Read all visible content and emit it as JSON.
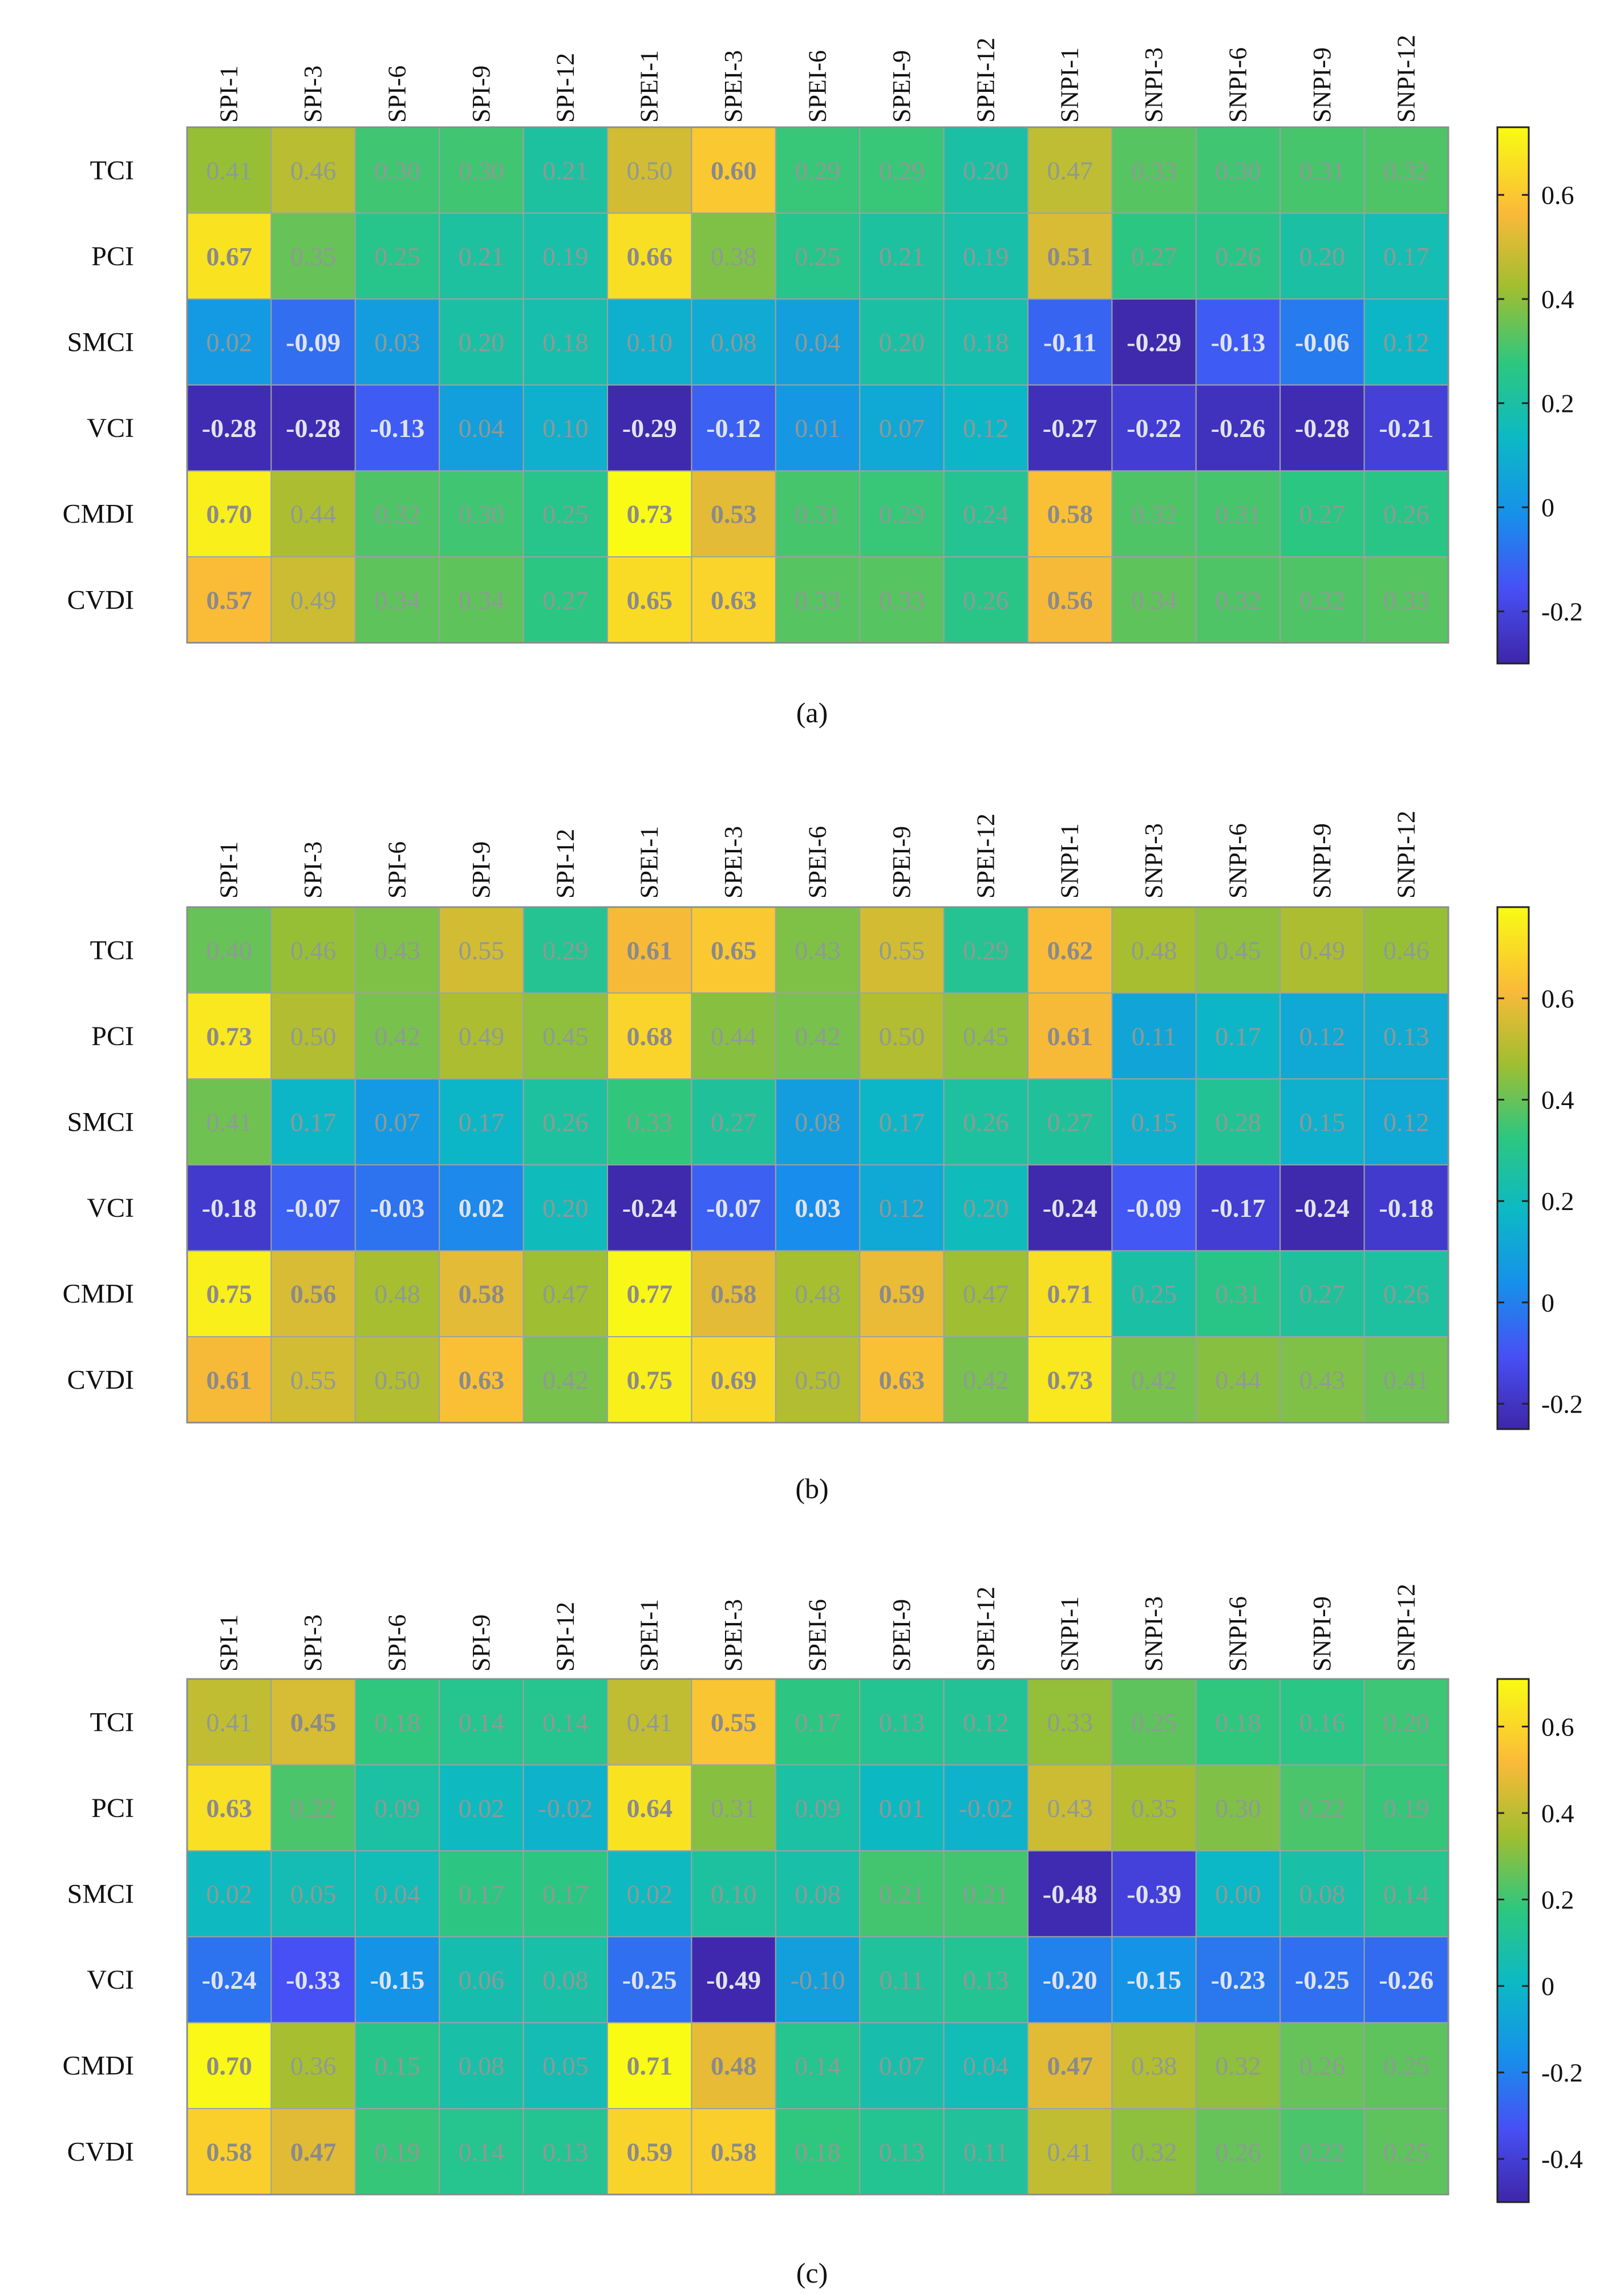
{
  "chart_data": [
    {
      "type": "heatmap",
      "panel": "(a)",
      "columns": [
        "SPI-1",
        "SPI-3",
        "SPI-6",
        "SPI-9",
        "SPI-12",
        "SPEI-1",
        "SPEI-3",
        "SPEI-6",
        "SPEI-9",
        "SPEI-12",
        "SNPI-1",
        "SNPI-3",
        "SNPI-6",
        "SNPI-9",
        "SNPI-12"
      ],
      "rows": [
        "TCI",
        "PCI",
        "SMCI",
        "VCI",
        "CMDI",
        "CVDI"
      ],
      "values": [
        [
          "0.41",
          "0.46",
          "0.30",
          "0.30",
          "0.21",
          "0.50",
          "0.60",
          "0.29",
          "0.29",
          "0.20",
          "0.47",
          "0.33",
          "0.30",
          "0.31",
          "0.32"
        ],
        [
          "0.67",
          "0.35",
          "0.25",
          "0.21",
          "0.19",
          "0.66",
          "0.38",
          "0.25",
          "0.21",
          "0.19",
          "0.51",
          "0.27",
          "0.26",
          "0.20",
          "0.17"
        ],
        [
          "0.02",
          "-0.09",
          "0.03",
          "0.20",
          "0.18",
          "0.10",
          "0.08",
          "0.04",
          "0.20",
          "0.18",
          "-0.11",
          "-0.29",
          "-0.13",
          "-0.06",
          "0.12"
        ],
        [
          "-0.28",
          "-0.28",
          "-0.13",
          "0.04",
          "0.10",
          "-0.29",
          "-0.12",
          "0.01",
          "0.07",
          "0.12",
          "-0.27",
          "-0.22",
          "-0.26",
          "-0.28",
          "-0.21"
        ],
        [
          "0.70",
          "0.44",
          "0.32",
          "0.30",
          "0.25",
          "0.73",
          "0.53",
          "0.31",
          "0.29",
          "0.24",
          "0.58",
          "0.32",
          "0.31",
          "0.27",
          "0.26"
        ],
        [
          "0.57",
          "0.49",
          "0.34",
          "0.34",
          "0.27",
          "0.65",
          "0.63",
          "0.33",
          "0.33",
          "0.26",
          "0.56",
          "0.34",
          "0.32",
          "0.32",
          "0.33"
        ]
      ],
      "colorbar": {
        "min": -0.3,
        "max": 0.73,
        "ticks": [
          "-0.2",
          "0",
          "0.2",
          "0.4",
          "0.6"
        ]
      }
    },
    {
      "type": "heatmap",
      "panel": "(b)",
      "columns": [
        "SPI-1",
        "SPI-3",
        "SPI-6",
        "SPI-9",
        "SPI-12",
        "SPEI-1",
        "SPEI-3",
        "SPEI-6",
        "SPEI-9",
        "SPEI-12",
        "SNPI-1",
        "SNPI-3",
        "SNPI-6",
        "SNPI-9",
        "SNPI-12"
      ],
      "rows": [
        "TCI",
        "PCI",
        "SMCI",
        "VCI",
        "CMDI",
        "CVDI"
      ],
      "values": [
        [
          "0.40",
          "0.46",
          "0.43",
          "0.55",
          "0.29",
          "0.61",
          "0.65",
          "0.43",
          "0.55",
          "0.29",
          "0.62",
          "0.48",
          "0.45",
          "0.49",
          "0.46"
        ],
        [
          "0.73",
          "0.50",
          "0.42",
          "0.49",
          "0.45",
          "0.68",
          "0.44",
          "0.42",
          "0.50",
          "0.45",
          "0.61",
          "0.11",
          "0.17",
          "0.12",
          "0.13"
        ],
        [
          "0.41",
          "0.17",
          "0.07",
          "0.17",
          "0.26",
          "0.33",
          "0.27",
          "0.08",
          "0.17",
          "0.26",
          "0.27",
          "0.15",
          "0.28",
          "0.15",
          "0.12"
        ],
        [
          "-0.18",
          "-0.07",
          "-0.03",
          "0.02",
          "0.20",
          "-0.24",
          "-0.07",
          "0.03",
          "0.12",
          "0.20",
          "-0.24",
          "-0.09",
          "-0.17",
          "-0.24",
          "-0.18"
        ],
        [
          "0.75",
          "0.56",
          "0.48",
          "0.58",
          "0.47",
          "0.77",
          "0.58",
          "0.48",
          "0.59",
          "0.47",
          "0.71",
          "0.25",
          "0.31",
          "0.27",
          "0.26"
        ],
        [
          "0.61",
          "0.55",
          "0.50",
          "0.63",
          "0.42",
          "0.75",
          "0.69",
          "0.50",
          "0.63",
          "0.42",
          "0.73",
          "0.42",
          "0.44",
          "0.43",
          "0.41"
        ]
      ],
      "colorbar": {
        "min": -0.25,
        "max": 0.78,
        "ticks": [
          "-0.2",
          "0",
          "0.2",
          "0.4",
          "0.6"
        ]
      }
    },
    {
      "type": "heatmap",
      "panel": "(c)",
      "columns": [
        "SPI-1",
        "SPI-3",
        "SPI-6",
        "SPI-9",
        "SPI-12",
        "SPEI-1",
        "SPEI-3",
        "SPEI-6",
        "SPEI-9",
        "SPEI-12",
        "SNPI-1",
        "SNPI-3",
        "SNPI-6",
        "SNPI-9",
        "SNPI-12"
      ],
      "rows": [
        "TCI",
        "PCI",
        "SMCI",
        "VCI",
        "CMDI",
        "CVDI"
      ],
      "values": [
        [
          "0.41",
          "0.45",
          "0.18",
          "0.14",
          "0.14",
          "0.41",
          "0.55",
          "0.17",
          "0.13",
          "0.12",
          "0.33",
          "0.25",
          "0.18",
          "0.16",
          "0.20"
        ],
        [
          "0.63",
          "0.22",
          "0.09",
          "0.02",
          "-0.02",
          "0.64",
          "0.31",
          "0.09",
          "0.01",
          "-0.02",
          "0.43",
          "0.35",
          "0.30",
          "0.22",
          "0.19"
        ],
        [
          "0.02",
          "0.05",
          "0.04",
          "0.17",
          "0.17",
          "0.02",
          "0.10",
          "0.08",
          "0.21",
          "0.21",
          "-0.48",
          "-0.39",
          "0.00",
          "0.08",
          "0.14"
        ],
        [
          "-0.24",
          "-0.33",
          "-0.15",
          "0.06",
          "0.08",
          "-0.25",
          "-0.49",
          "-0.10",
          "0.11",
          "0.13",
          "-0.20",
          "-0.15",
          "-0.23",
          "-0.25",
          "-0.26"
        ],
        [
          "0.70",
          "0.36",
          "0.15",
          "0.08",
          "0.05",
          "0.71",
          "0.48",
          "0.14",
          "0.07",
          "0.04",
          "0.47",
          "0.38",
          "0.32",
          "0.26",
          "0.25"
        ],
        [
          "0.58",
          "0.47",
          "0.19",
          "0.14",
          "0.13",
          "0.59",
          "0.58",
          "0.18",
          "0.13",
          "0.11",
          "0.41",
          "0.32",
          "0.26",
          "0.22",
          "0.25"
        ]
      ],
      "colorbar": {
        "min": -0.5,
        "max": 0.71,
        "ticks": [
          "-0.4",
          "-0.2",
          "0",
          "0.2",
          "0.4",
          "0.6"
        ]
      }
    }
  ]
}
